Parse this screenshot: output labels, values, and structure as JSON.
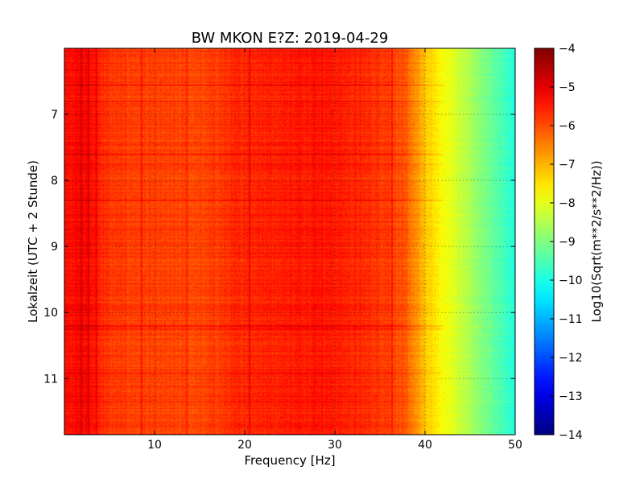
{
  "chart_data": {
    "type": "heatmap",
    "title": "BW MKON E?Z: 2019-04-29",
    "xlabel": "Frequency [Hz]",
    "ylabel": "Lokalzeit (UTC + 2 Stunde)",
    "colorbar_label": "Log10(Sqrt(m**2/s**2/Hz))",
    "xlim": [
      0,
      50
    ],
    "ylim": [
      11.85,
      6.0
    ],
    "y_inverted": true,
    "x_ticks": [
      10,
      20,
      30,
      40,
      50
    ],
    "x_tick_labels": [
      "10",
      "20",
      "30",
      "40",
      "50"
    ],
    "y_ticks": [
      7,
      8,
      9,
      10,
      11
    ],
    "y_tick_labels": [
      "7",
      "8",
      "9",
      "10",
      "11"
    ],
    "colorbar_range": [
      -14,
      -4
    ],
    "colorbar_ticks": [
      -4,
      -5,
      -6,
      -7,
      -8,
      -9,
      -10,
      -11,
      -12,
      -13,
      -14
    ],
    "colorbar_tick_labels": [
      "−4",
      "−5",
      "−6",
      "−7",
      "−8",
      "−9",
      "−10",
      "−11",
      "−12",
      "−13",
      "−14"
    ],
    "colormap": "jet",
    "grid": true,
    "spectrum_profile": {
      "frequency_hz": [
        0,
        2,
        5,
        10,
        15,
        20,
        25,
        28,
        32,
        36,
        38,
        40,
        42,
        44,
        46,
        48,
        50
      ],
      "log_amplitude": [
        -5.4,
        -5.2,
        -5.8,
        -5.9,
        -5.95,
        -5.6,
        -5.5,
        -5.4,
        -5.6,
        -5.8,
        -6.2,
        -7.2,
        -7.8,
        -8.3,
        -8.9,
        -9.4,
        -10.0
      ]
    },
    "notable_lines": {
      "vertical_frequency_hz": [
        1.8,
        2.6,
        3.5,
        8.5,
        13.5,
        20.5,
        36.3
      ],
      "horizontal_time_hours": [
        6.55,
        6.8,
        7.6,
        7.75,
        8.3,
        10.2,
        10.25,
        10.9
      ]
    }
  }
}
